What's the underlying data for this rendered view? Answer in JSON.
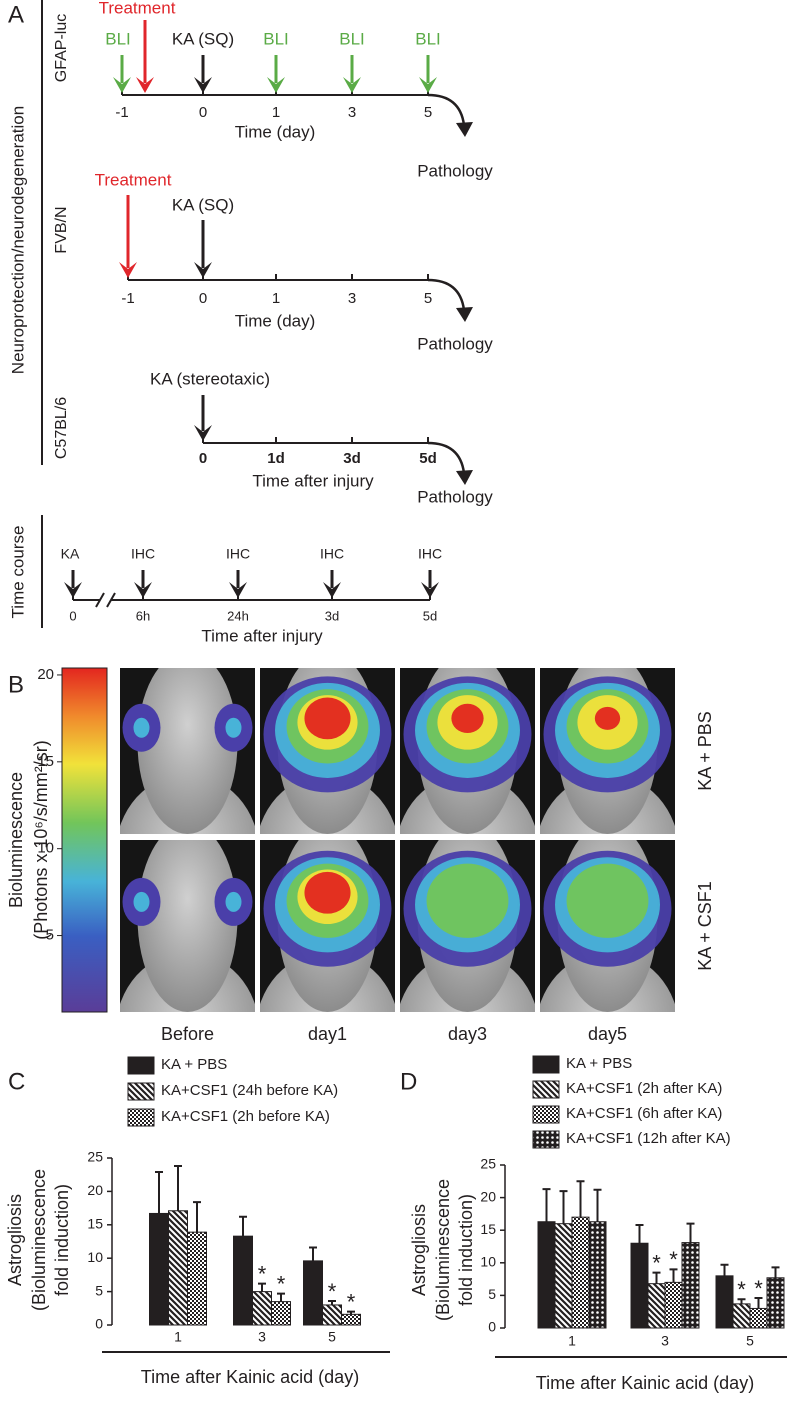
{
  "panel_labels": [
    "A",
    "B",
    "C",
    "D"
  ],
  "panel_a": {
    "group_labels": [
      "Neuroprotection/neurodegeneration",
      "Time course"
    ],
    "timelines": [
      {
        "strain": "GFAP-luc",
        "arrows": [
          {
            "label": "BLI",
            "color": "#5aab46"
          },
          {
            "label": "Treatment",
            "color": "#e0262b"
          },
          {
            "label": "KA (SQ)",
            "color": "#231f20"
          },
          {
            "label": "BLI",
            "color": "#5aab46"
          },
          {
            "label": "BLI",
            "color": "#5aab46"
          },
          {
            "label": "BLI",
            "color": "#5aab46"
          }
        ],
        "ticks": [
          "-1",
          "0",
          "1",
          "3",
          "5"
        ],
        "axis_label": "Time (day)",
        "outcome": "Pathology"
      },
      {
        "strain": "FVB/N",
        "arrows": [
          {
            "label": "Treatment",
            "color": "#e0262b"
          },
          {
            "label": "KA (SQ)",
            "color": "#231f20"
          }
        ],
        "ticks": [
          "-1",
          "0",
          "1",
          "3",
          "5"
        ],
        "axis_label": "Time (day)",
        "outcome": "Pathology"
      },
      {
        "strain": "C57BL/6",
        "arrows": [
          {
            "label": "KA (stereotaxic)",
            "color": "#231f20"
          }
        ],
        "ticks": [
          "0",
          "1d",
          "3d",
          "5d"
        ],
        "axis_label": "Time after injury",
        "outcome": "Pathology"
      },
      {
        "arrows": [
          {
            "label": "KA",
            "color": "#231f20"
          },
          {
            "label": "IHC",
            "color": "#231f20"
          },
          {
            "label": "IHC",
            "color": "#231f20"
          },
          {
            "label": "IHC",
            "color": "#231f20"
          },
          {
            "label": "IHC",
            "color": "#231f20"
          }
        ],
        "ticks": [
          "0",
          "6h",
          "24h",
          "3d",
          "5d"
        ],
        "axis_label": "Time after injury"
      }
    ]
  },
  "panel_b": {
    "colorbar": {
      "label": [
        "Bioluminescence",
        "(Photons x 10⁶/s/mm²/sr)"
      ],
      "lim": [
        0.6,
        20.4
      ],
      "ticks": [
        5,
        10,
        15,
        20
      ]
    },
    "rows": [
      "KA + PBS",
      "KA + CSF1"
    ],
    "columns": [
      "Before",
      "day1",
      "day3",
      "day5"
    ]
  },
  "chart_data": [
    {
      "type": "bar",
      "y_label": [
        "Astrogliosis",
        "(Bioluminescence",
        "fold induction)"
      ],
      "x_label": "Time after Kainic acid (day)",
      "categories": [
        "1",
        "3",
        "5"
      ],
      "ylim": [
        0,
        25
      ],
      "yticks": [
        0,
        5,
        10,
        15,
        20,
        25
      ],
      "series": [
        {
          "name": "KA + PBS",
          "color": "#231f20",
          "pattern": "solid",
          "values": [
            16.7,
            13.3,
            9.6
          ],
          "errors": [
            6.2,
            2.9,
            2.0
          ]
        },
        {
          "name": "KA+CSF1 (24h before KA)",
          "color": "#231f20",
          "pattern": "hatch",
          "values": [
            17.1,
            5.0,
            3.0
          ],
          "errors": [
            6.7,
            1.2,
            0.6
          ],
          "annotations": [
            null,
            "*",
            "*"
          ]
        },
        {
          "name": "KA+CSF1 (2h before KA)",
          "color": "#231f20",
          "pattern": "checker",
          "values": [
            13.9,
            3.5,
            1.6
          ],
          "errors": [
            4.5,
            1.2,
            0.4
          ],
          "annotations": [
            null,
            "*",
            "*"
          ]
        }
      ]
    },
    {
      "type": "bar",
      "y_label": [
        "Astrogliosis",
        "(Bioluminescence",
        "fold induction)"
      ],
      "x_label": "Time after Kainic acid (day)",
      "categories": [
        "1",
        "3",
        "5"
      ],
      "ylim": [
        0,
        25
      ],
      "yticks": [
        0,
        5,
        10,
        15,
        20,
        25
      ],
      "series": [
        {
          "name": "KA + PBS",
          "color": "#231f20",
          "pattern": "solid",
          "values": [
            16.3,
            13.0,
            8.0
          ],
          "errors": [
            5.0,
            2.8,
            1.7
          ]
        },
        {
          "name": "KA+CSF1 (2h after KA)",
          "color": "#231f20",
          "pattern": "hatch",
          "values": [
            16.0,
            6.8,
            3.7
          ],
          "errors": [
            5.0,
            1.7,
            0.7
          ],
          "annotations": [
            null,
            "*",
            "*"
          ]
        },
        {
          "name": "KA+CSF1 (6h after KA)",
          "color": "#231f20",
          "pattern": "checker",
          "values": [
            17.0,
            7.0,
            3.0
          ],
          "errors": [
            5.5,
            2.0,
            1.6
          ],
          "annotations": [
            null,
            "*",
            "*"
          ]
        },
        {
          "name": "KA+CSF1 (12h after KA)",
          "color": "#231f20",
          "pattern": "dots",
          "values": [
            16.3,
            13.1,
            7.7
          ],
          "errors": [
            4.9,
            2.9,
            1.6
          ]
        }
      ]
    }
  ]
}
